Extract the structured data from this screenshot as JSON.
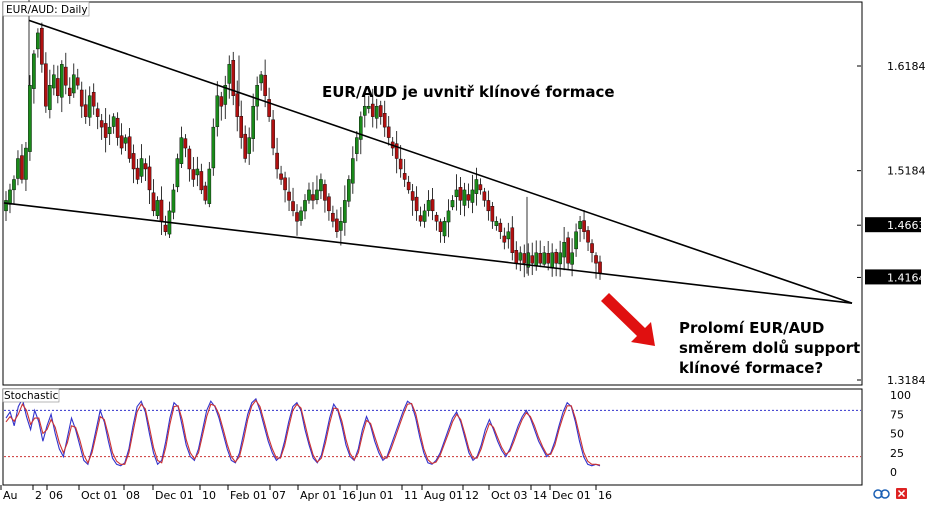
{
  "chart_data": [
    {
      "type": "candlestick",
      "title": "EUR/AUD: Daily",
      "y_ticks": [
        "1.6184",
        "1.5184",
        "1.4663",
        "1.4164",
        "1.3184"
      ],
      "y_tick_values": [
        1.6184,
        1.5184,
        1.4663,
        1.4164,
        1.3184
      ],
      "price_labels_highlighted": [
        "1.4663",
        "1.4164"
      ],
      "ylim": [
        1.3184,
        1.6934
      ],
      "x_tick_labels": [
        "Au",
        "2",
        "06",
        "Oct 01",
        "08",
        "Dec 01",
        "10",
        "Feb 01",
        "07",
        "Apr 01",
        "16",
        "Jun 01",
        "11",
        "Aug 01",
        "12",
        "Oct 03",
        "14",
        "Dec 01",
        "16"
      ],
      "upper_trendline": {
        "start_price": 1.662,
        "end_price": 1.3918
      },
      "lower_trendline": {
        "start_price": 1.4876,
        "end_price": 1.3918
      },
      "close_prices": [
        1.49,
        1.5,
        1.51,
        1.53,
        1.51,
        1.54,
        1.6,
        1.63,
        1.65,
        1.62,
        1.58,
        1.6,
        1.61,
        1.59,
        1.62,
        1.6,
        1.59,
        1.61,
        1.6,
        1.58,
        1.57,
        1.59,
        1.58,
        1.57,
        1.56,
        1.55,
        1.56,
        1.57,
        1.55,
        1.54,
        1.55,
        1.53,
        1.52,
        1.51,
        1.53,
        1.52,
        1.5,
        1.48,
        1.49,
        1.47,
        1.46,
        1.48,
        1.5,
        1.53,
        1.55,
        1.54,
        1.52,
        1.51,
        1.52,
        1.5,
        1.49,
        1.52,
        1.56,
        1.59,
        1.58,
        1.6,
        1.62,
        1.59,
        1.57,
        1.55,
        1.53,
        1.55,
        1.58,
        1.6,
        1.61,
        1.59,
        1.57,
        1.54,
        1.52,
        1.51,
        1.5,
        1.49,
        1.48,
        1.47,
        1.48,
        1.49,
        1.5,
        1.49,
        1.5,
        1.51,
        1.49,
        1.48,
        1.47,
        1.46,
        1.47,
        1.49,
        1.51,
        1.53,
        1.55,
        1.57,
        1.58,
        1.58,
        1.57,
        1.58,
        1.57,
        1.56,
        1.55,
        1.54,
        1.53,
        1.52,
        1.51,
        1.5,
        1.49,
        1.48,
        1.47,
        1.48,
        1.49,
        1.48,
        1.47,
        1.46,
        1.47,
        1.48,
        1.49,
        1.5,
        1.49,
        1.5,
        1.49,
        1.5,
        1.51,
        1.5,
        1.49,
        1.48,
        1.47,
        1.47,
        1.46,
        1.45,
        1.46,
        1.44,
        1.43,
        1.44,
        1.43,
        1.44,
        1.43,
        1.44,
        1.43,
        1.44,
        1.43,
        1.44,
        1.43,
        1.44,
        1.45,
        1.43,
        1.44,
        1.46,
        1.47,
        1.46,
        1.45,
        1.44,
        1.43,
        1.42
      ],
      "panel": "main"
    },
    {
      "type": "line",
      "title": "Stochastic",
      "y_ticks": [
        "100",
        "75",
        "50",
        "25",
        "0"
      ],
      "y_tick_values": [
        100,
        75,
        50,
        25,
        0
      ],
      "ylim": [
        0,
        100
      ],
      "overbought_level": 80,
      "oversold_level": 20,
      "series": [
        {
          "color": "#3333cc",
          "values": [
            70,
            78,
            60,
            85,
            95,
            72,
            55,
            80,
            65,
            40,
            60,
            75,
            50,
            30,
            20,
            45,
            70,
            55,
            35,
            15,
            10,
            30,
            55,
            80,
            65,
            40,
            18,
            10,
            8,
            12,
            30,
            60,
            85,
            92,
            78,
            50,
            25,
            10,
            15,
            40,
            70,
            90,
            85,
            60,
            35,
            20,
            15,
            30,
            55,
            80,
            92,
            85,
            70,
            50,
            30,
            15,
            12,
            25,
            50,
            75,
            90,
            95,
            80,
            60,
            40,
            25,
            15,
            20,
            40,
            65,
            85,
            90,
            80,
            55,
            35,
            18,
            12,
            22,
            45,
            70,
            88,
            80,
            60,
            35,
            20,
            15,
            30,
            55,
            72,
            60,
            40,
            25,
            15,
            20,
            35,
            50,
            65,
            80,
            92,
            88,
            70,
            45,
            25,
            12,
            10,
            15,
            25,
            40,
            55,
            70,
            78,
            65,
            45,
            25,
            15,
            20,
            35,
            55,
            68,
            55,
            40,
            28,
            20,
            30,
            45,
            60,
            72,
            80,
            70,
            55,
            40,
            30,
            20,
            25,
            40,
            60,
            78,
            90,
            85,
            65,
            40,
            20,
            10,
            8,
            10,
            8
          ]
        },
        {
          "color": "#cc3333",
          "values": [
            65,
            72,
            66,
            75,
            88,
            80,
            62,
            70,
            70,
            50,
            55,
            68,
            58,
            38,
            25,
            38,
            60,
            58,
            42,
            22,
            12,
            25,
            48,
            72,
            68,
            48,
            25,
            14,
            10,
            10,
            25,
            52,
            78,
            88,
            82,
            58,
            32,
            15,
            12,
            32,
            62,
            85,
            86,
            68,
            42,
            25,
            17,
            25,
            48,
            72,
            88,
            86,
            75,
            56,
            36,
            20,
            13,
            20,
            42,
            68,
            86,
            93,
            85,
            66,
            46,
            30,
            18,
            18,
            34,
            58,
            80,
            88,
            83,
            62,
            40,
            22,
            13,
            18,
            38,
            63,
            83,
            82,
            66,
            42,
            24,
            16,
            25,
            48,
            67,
            63,
            46,
            30,
            18,
            18,
            30,
            45,
            60,
            75,
            88,
            89,
            76,
            52,
            30,
            16,
            11,
            13,
            22,
            36,
            50,
            65,
            75,
            68,
            50,
            30,
            18,
            18,
            30,
            48,
            63,
            58,
            45,
            32,
            23,
            27,
            40,
            55,
            68,
            77,
            72,
            60,
            45,
            33,
            23,
            23,
            35,
            55,
            72,
            86,
            86,
            70,
            48,
            26,
            14,
            10,
            10,
            9
          ]
        }
      ],
      "panel": "stochastic"
    }
  ],
  "ui": {
    "annotation_top": "EUR/AUD je uvnitř klínové formace",
    "annotation_bottom": [
      "Prolomí EUR/AUD",
      "směrem dolů support",
      "klínové formace?"
    ],
    "colors": {
      "bull": "#1a8a1a",
      "bear": "#b01010",
      "arrow": "#e01010",
      "k_line": "#3333cc",
      "d_line": "#cc3333"
    }
  }
}
